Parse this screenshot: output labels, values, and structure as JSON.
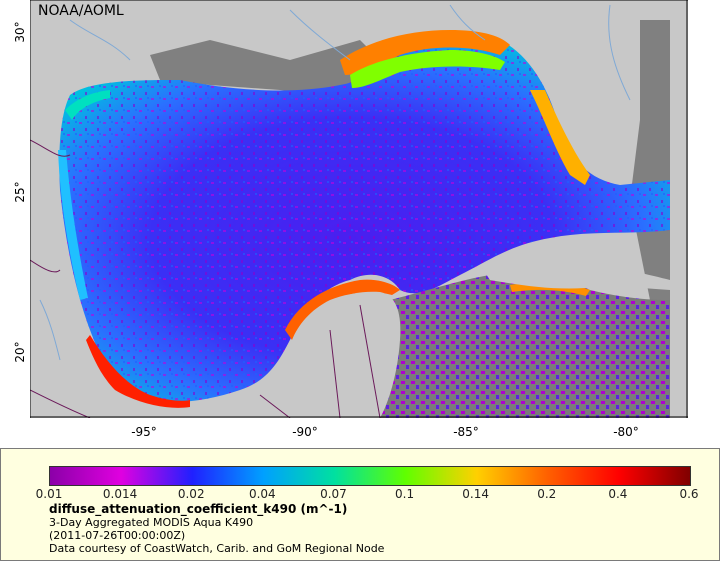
{
  "map": {
    "agency": "NOAA/AOML",
    "lat_ticks": [
      "30°",
      "25°",
      "20°"
    ],
    "lon_ticks": [
      "-95°",
      "-90°",
      "-85°",
      "-80°"
    ],
    "colors": {
      "land": "#c8c8c8",
      "no_data": "#808080",
      "coast_line": "#7fa9d6",
      "border_line": "#6b1a5a"
    }
  },
  "legend": {
    "colorbar_ticks": [
      "0.01",
      "0.014",
      "0.02",
      "0.04",
      "0.07",
      "0.1",
      "0.14",
      "0.2",
      "0.4",
      "0.6"
    ],
    "colorbar_colors": [
      "#8b00a8",
      "#e000e0",
      "#2020ff",
      "#00a0ff",
      "#00e0a0",
      "#60ff00",
      "#ffd000",
      "#ff6000",
      "#ff0000",
      "#800000"
    ],
    "variable": "diffuse_attenuation_coefficient_k490 (m^-1)",
    "product": "3-Day Aggregated MODIS Aqua K490",
    "time": "(2011-07-26T00:00:00Z)",
    "credit": "Data courtesy of CoastWatch, Carib. and GoM Regional Node"
  }
}
